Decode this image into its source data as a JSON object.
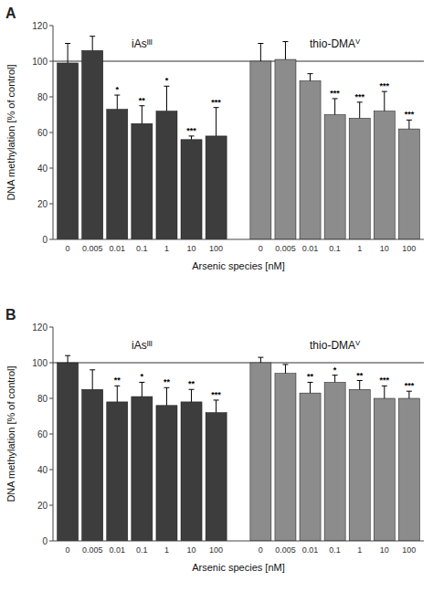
{
  "chart_data": [
    {
      "type": "bar",
      "title": "A",
      "categories": [
        "0",
        "0.005",
        "0.01",
        "0.1",
        "1",
        "10",
        "100"
      ],
      "series": [
        {
          "name": "iAsᴵᴵᴵ",
          "color": "#3d3d3d",
          "values": [
            99,
            106,
            73,
            65,
            72,
            56,
            58
          ],
          "errors": [
            11,
            8,
            8,
            10,
            14,
            2,
            16
          ],
          "stars": [
            null,
            null,
            "*",
            "**",
            "*",
            "***",
            "***"
          ]
        },
        {
          "name": "thio-DMAⱽ",
          "color": "#8c8c8c",
          "values": [
            100,
            101,
            89,
            70,
            68,
            72,
            62
          ],
          "errors": [
            10,
            10,
            4,
            9,
            9,
            11,
            5
          ],
          "stars": [
            null,
            null,
            null,
            "***",
            "***",
            "***",
            "***"
          ]
        }
      ],
      "xlabel": "Arsenic species [nM]",
      "ylabel": "DNA methylation [% of control]",
      "ylim": [
        0,
        120
      ],
      "yticks": [
        0,
        20,
        40,
        60,
        80,
        100,
        120
      ],
      "reference_line": 100,
      "grid": false
    },
    {
      "type": "bar",
      "title": "B",
      "categories": [
        "0",
        "0.005",
        "0.01",
        "0.1",
        "1",
        "10",
        "100"
      ],
      "series": [
        {
          "name": "iAsᴵᴵᴵ",
          "color": "#3d3d3d",
          "values": [
            100,
            85,
            78,
            81,
            76,
            78,
            72
          ],
          "errors": [
            4,
            11,
            9,
            8,
            10,
            7,
            7
          ],
          "stars": [
            null,
            null,
            "**",
            "*",
            "**",
            "**",
            "***"
          ]
        },
        {
          "name": "thio-DMAⱽ",
          "color": "#8c8c8c",
          "values": [
            100,
            94,
            83,
            89,
            85,
            80,
            80
          ],
          "errors": [
            3,
            5,
            6,
            4,
            5,
            7,
            4
          ],
          "stars": [
            null,
            null,
            "**",
            "*",
            "**",
            "***",
            "***"
          ]
        }
      ],
      "xlabel": "Arsenic species [nM]",
      "ylabel": "DNA methylation [% of control]",
      "ylim": [
        0,
        120
      ],
      "yticks": [
        0,
        20,
        40,
        60,
        80,
        100,
        120
      ],
      "reference_line": 100,
      "grid": false
    }
  ]
}
